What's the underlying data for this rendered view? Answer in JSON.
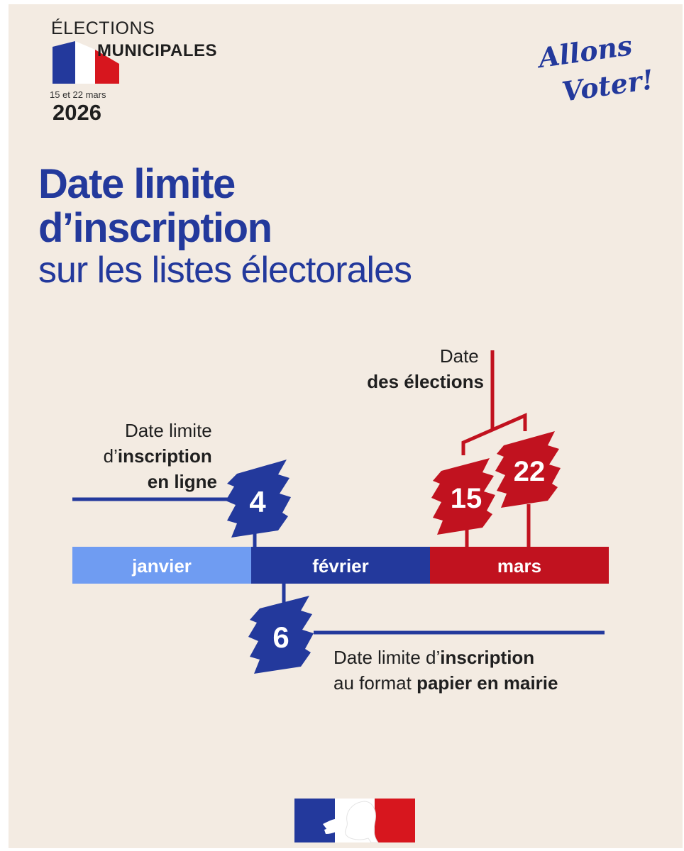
{
  "header": {
    "elections_label": "ÉLECTIONS",
    "municipales_label": "MUNICIPALES",
    "dates_small": "15 et 22 mars",
    "year": "2026",
    "slogan_line1": "Allons",
    "slogan_line2": "Voter!"
  },
  "title": {
    "line1": "Date limite",
    "line2": "d’inscription",
    "line3": "sur les listes électorales"
  },
  "timeline": {
    "months": [
      "janvier",
      "février",
      "mars"
    ],
    "online": {
      "day": "4",
      "label_line1": "Date limite",
      "label_line2_prefix": "d’",
      "label_line2_bold": "inscription",
      "label_line3_bold": "en ligne"
    },
    "paper": {
      "day": "6",
      "label_line1_prefix": "Date limite d’",
      "label_line1_bold": "inscription",
      "label_line2_prefix": "au format ",
      "label_line2_bold": "papier en mairie"
    },
    "elections": {
      "label_line1": "Date",
      "label_line2_bold": "des élections",
      "day1": "15",
      "day2": "22"
    }
  },
  "colors": {
    "blue": "#23399c",
    "light_blue": "#6f9cf2",
    "red": "#c1121f",
    "background": "#f3ebe2",
    "text": "#1f1f1f"
  },
  "icons": {
    "flag": "french-flag-icon",
    "government_logo": "marianne-logo-icon"
  }
}
